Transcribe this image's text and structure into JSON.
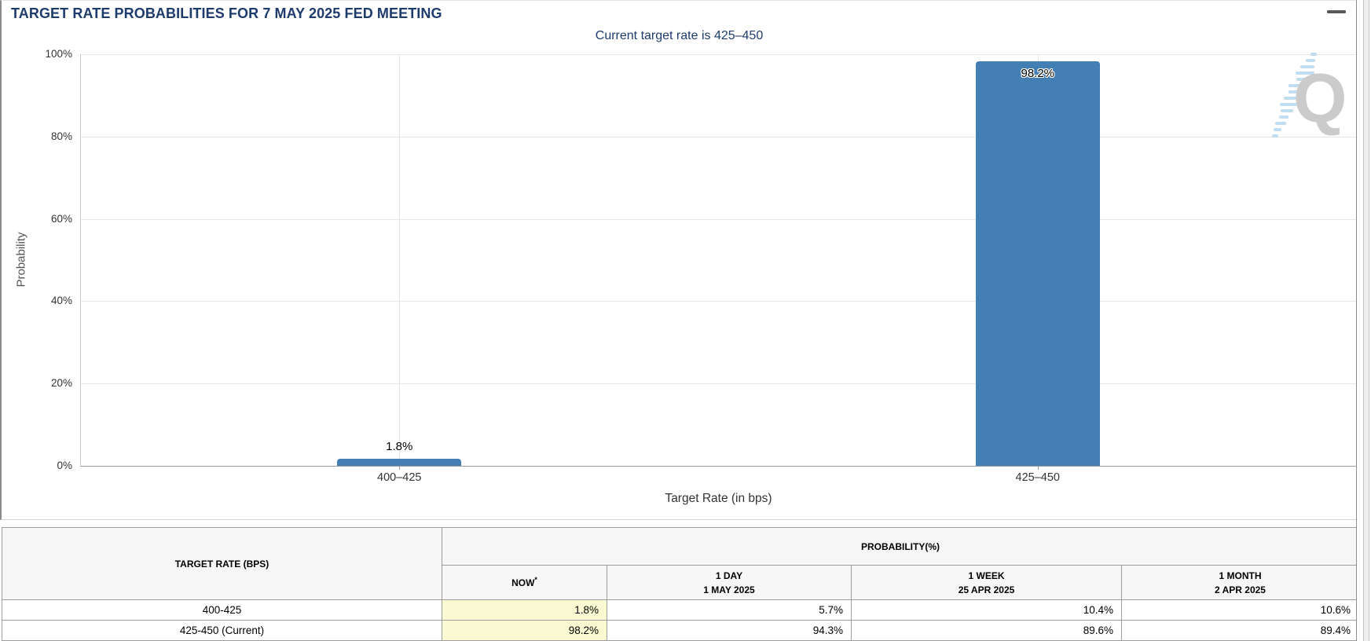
{
  "panel": {
    "title": "TARGET RATE PROBABILITIES FOR 7 MAY 2025 FED MEETING"
  },
  "chart_data": {
    "type": "bar",
    "title": "Current target rate is 425–450",
    "categories": [
      "400–425",
      "425–450"
    ],
    "values": [
      1.8,
      98.2
    ],
    "value_labels": [
      "1.8%",
      "98.2%"
    ],
    "label_placement": [
      "above",
      "inside"
    ],
    "xlabel": "Target Rate (in bps)",
    "ylabel": "Probability",
    "ylim": [
      0,
      100
    ],
    "yticks": [
      0,
      20,
      40,
      60,
      80,
      100
    ],
    "ytick_labels": [
      "0%",
      "20%",
      "40%",
      "60%",
      "80%",
      "100%"
    ],
    "grid": true,
    "legend": false,
    "bar_color": "#437fb4"
  },
  "watermark": {
    "letter": "Q"
  },
  "table": {
    "col1_header": "TARGET RATE (BPS)",
    "group_header": "PROBABILITY(%)",
    "columns": [
      {
        "line1": "NOW",
        "sup": "*",
        "line2": ""
      },
      {
        "line1": "1 DAY",
        "sup": "",
        "line2": "1 MAY 2025"
      },
      {
        "line1": "1 WEEK",
        "sup": "",
        "line2": "25 APR 2025"
      },
      {
        "line1": "1 MONTH",
        "sup": "",
        "line2": "2 APR 2025"
      }
    ],
    "rows": [
      {
        "rate": "400-425",
        "now": "1.8%",
        "day": "5.7%",
        "week": "10.4%",
        "month": "10.6%"
      },
      {
        "rate": "425-450 (Current)",
        "now": "98.2%",
        "day": "94.3%",
        "week": "89.6%",
        "month": "89.4%"
      }
    ]
  },
  "colors": {
    "title_navy": "#1d3b6d",
    "bar_blue": "#437fb4",
    "now_highlight_yellow": "#fafad2",
    "watermark_gray": "#cbcbcb"
  }
}
